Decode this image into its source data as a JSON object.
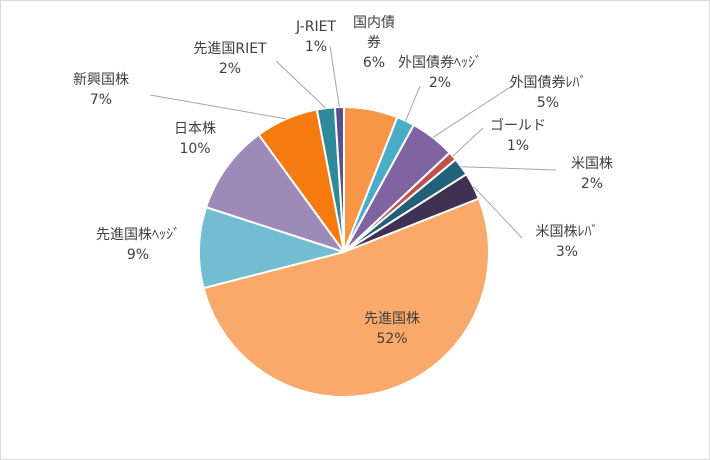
{
  "chart_data": {
    "type": "pie",
    "title": "",
    "legend": "none",
    "slices": [
      {
        "name": "国内債券",
        "name_lines": [
          "国内債",
          "券"
        ],
        "pct_label": "6%",
        "value": 6,
        "color": "#F79646"
      },
      {
        "name": "外国債券ヘッジ",
        "name_lines": [
          "外国債券ﾍｯｼﾞ"
        ],
        "pct_label": "2%",
        "value": 2,
        "color": "#4BACC6"
      },
      {
        "name": "外国債券レバ",
        "name_lines": [
          "外国債券ﾚﾊﾞ"
        ],
        "pct_label": "5%",
        "value": 5,
        "color": "#8064A2"
      },
      {
        "name": "ゴールド",
        "name_lines": [
          "ゴールド"
        ],
        "pct_label": "1%",
        "value": 1,
        "color": "#C0504D"
      },
      {
        "name": "米国株",
        "name_lines": [
          "米国株"
        ],
        "pct_label": "2%",
        "value": 2,
        "color": "#23617A"
      },
      {
        "name": "米国株レバ",
        "name_lines": [
          "米国株ﾚﾊﾞ"
        ],
        "pct_label": "3%",
        "value": 3,
        "color": "#403152"
      },
      {
        "name": "先進国株",
        "name_lines": [
          "先進国株"
        ],
        "pct_label": "52%",
        "value": 52,
        "color": "#F9A96A"
      },
      {
        "name": "先進国株ヘッジ",
        "name_lines": [
          "先進国株ﾍｯｼﾞ"
        ],
        "pct_label": "9%",
        "value": 9,
        "color": "#73BDD2"
      },
      {
        "name": "日本株",
        "name_lines": [
          "日本株"
        ],
        "pct_label": "10%",
        "value": 10,
        "color": "#9E8AB8"
      },
      {
        "name": "新興国株",
        "name_lines": [
          "新興国株"
        ],
        "pct_label": "7%",
        "value": 7,
        "color": "#F57A0F"
      },
      {
        "name": "先進国RIET",
        "name_lines": [
          "先進国RIET"
        ],
        "pct_label": "2%",
        "value": 2,
        "color": "#2E8A99"
      },
      {
        "name": "J-RIET",
        "name_lines": [
          "J-RIET"
        ],
        "pct_label": "1%",
        "value": 1,
        "color": "#5A4E8C"
      }
    ]
  }
}
